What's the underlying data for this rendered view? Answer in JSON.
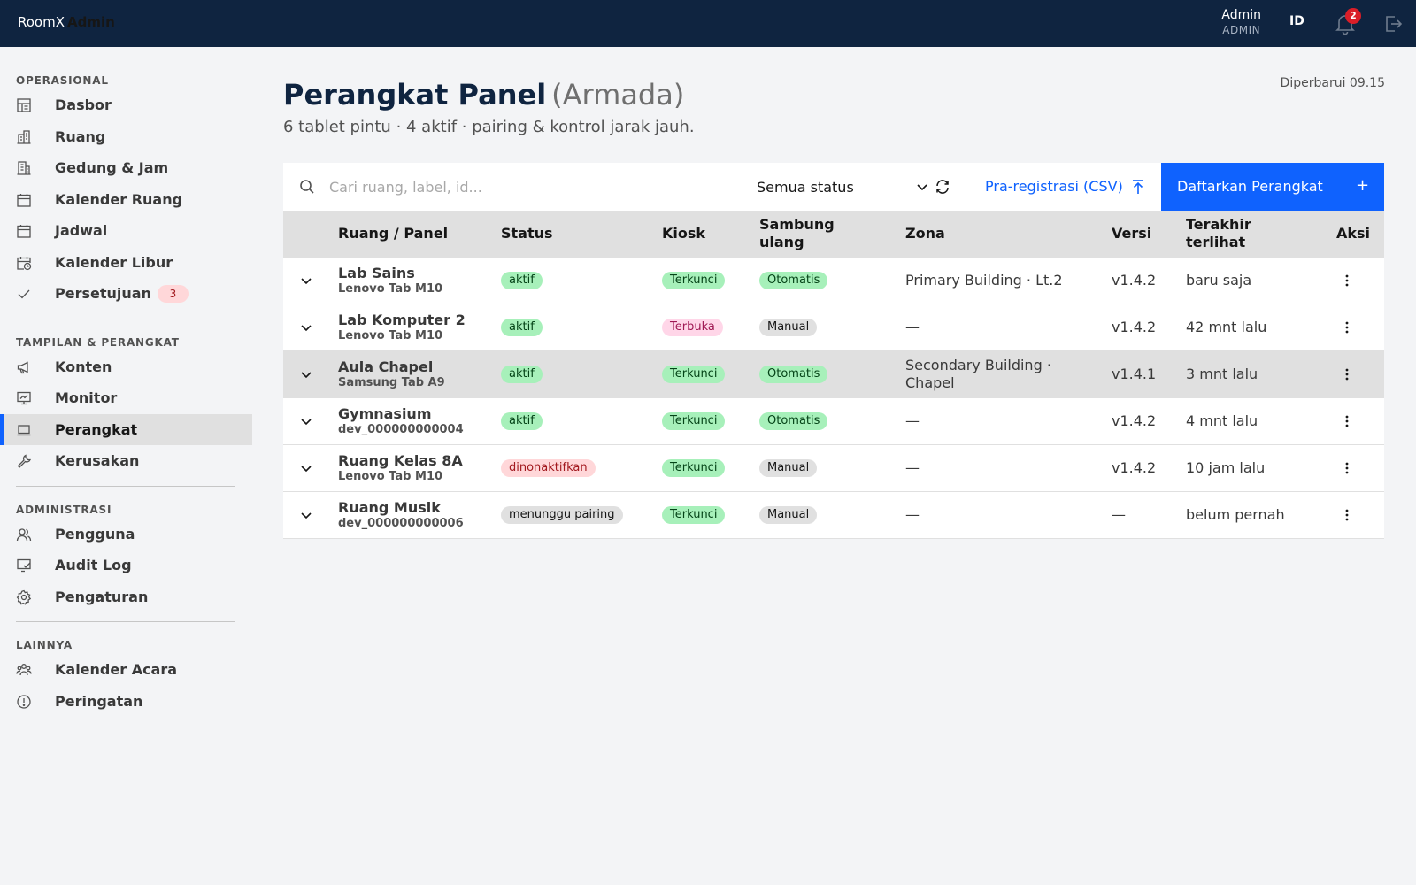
{
  "header": {
    "brand_name": "RoomX",
    "brand_sub": "Admin",
    "user_name": "Admin",
    "user_role": "ADMIN",
    "language": "ID",
    "notification_count": "2",
    "icons": [
      "bell-icon",
      "logout-icon"
    ]
  },
  "sidebar": {
    "sections": [
      {
        "title": "OPERASIONAL",
        "items": [
          {
            "label": "Dasbor",
            "icon": "dashboard-icon"
          },
          {
            "label": "Ruang",
            "icon": "building-icon"
          },
          {
            "label": "Gedung & Jam",
            "icon": "office-building-icon"
          },
          {
            "label": "Kalender Ruang",
            "icon": "calendar-icon"
          },
          {
            "label": "Jadwal",
            "icon": "calendar-icon"
          },
          {
            "label": "Kalender Libur",
            "icon": "calendar-clock-icon"
          },
          {
            "label": "Persetujuan",
            "icon": "checkmark-icon",
            "count": "3"
          }
        ]
      },
      {
        "title": "TAMPILAN & PERANGKAT",
        "items": [
          {
            "label": "Konten",
            "icon": "megaphone-icon"
          },
          {
            "label": "Monitor",
            "icon": "monitor-icon"
          },
          {
            "label": "Perangkat",
            "icon": "laptop-icon",
            "active": true
          },
          {
            "label": "Kerusakan",
            "icon": "wrench-icon"
          }
        ]
      },
      {
        "title": "ADMINISTRASI",
        "items": [
          {
            "label": "Pengguna",
            "icon": "users-icon"
          },
          {
            "label": "Audit Log",
            "icon": "audit-icon"
          },
          {
            "label": "Pengaturan",
            "icon": "gear-icon"
          }
        ]
      },
      {
        "title": "LAINNYA",
        "items": [
          {
            "label": "Kalender Acara",
            "icon": "group-icon"
          },
          {
            "label": "Peringatan",
            "icon": "warning-icon"
          }
        ]
      }
    ]
  },
  "page": {
    "title": "Perangkat Panel",
    "title_paren": "(Armada)",
    "subtitle": "6 tablet pintu · 4 aktif · pairing & kontrol jarak jauh.",
    "updated": "Diperbarui 09.15"
  },
  "toolbar": {
    "search_placeholder": "Cari ruang, label, id...",
    "status_filter": "Semua status",
    "csv_label": "Pra-registrasi (CSV)",
    "register_label": "Daftarkan Perangkat",
    "register_icon": "+"
  },
  "table": {
    "columns": [
      "Ruang / Panel",
      "Status",
      "Kiosk",
      "Sambung\nulang",
      "Zona",
      "Versi",
      "Terakhir\nterlihat",
      "Aksi"
    ],
    "rows": [
      {
        "name": "Lab Sains",
        "device": "Lenovo Tab M10",
        "status": "aktif",
        "status_tone": "green",
        "kiosk": "Terkunci",
        "kiosk_tone": "green",
        "reconnect": "Otomatis",
        "reconnect_tone": "green",
        "zone": "Primary Building · Lt.2",
        "version": "v1.4.2",
        "last_seen": "baru saja"
      },
      {
        "name": "Lab Komputer 2",
        "device": "Lenovo Tab M10",
        "status": "aktif",
        "status_tone": "green",
        "kiosk": "Terbuka",
        "kiosk_tone": "pink",
        "reconnect": "Manual",
        "reconnect_tone": "gray",
        "zone": "—",
        "version": "v1.4.2",
        "last_seen": "42 mnt lalu"
      },
      {
        "name": "Aula Chapel",
        "device": "Samsung Tab A9",
        "status": "aktif",
        "status_tone": "green",
        "kiosk": "Terkunci",
        "kiosk_tone": "green",
        "reconnect": "Otomatis",
        "reconnect_tone": "green",
        "zone": "Secondary Building · Chapel",
        "version": "v1.4.1",
        "last_seen": "3 mnt lalu",
        "highlight": true
      },
      {
        "name": "Gymnasium",
        "device": "dev_000000000004",
        "status": "aktif",
        "status_tone": "green",
        "kiosk": "Terkunci",
        "kiosk_tone": "green",
        "reconnect": "Otomatis",
        "reconnect_tone": "green",
        "zone": "—",
        "version": "v1.4.2",
        "last_seen": "4 mnt lalu"
      },
      {
        "name": "Ruang Kelas 8A",
        "device": "Lenovo Tab M10",
        "status": "dinonaktifkan",
        "status_tone": "red",
        "kiosk": "Terkunci",
        "kiosk_tone": "green",
        "reconnect": "Manual",
        "reconnect_tone": "gray",
        "zone": "—",
        "version": "v1.4.2",
        "last_seen": "10 jam lalu"
      },
      {
        "name": "Ruang Musik",
        "device": "dev_000000000006",
        "status": "menunggu pairing",
        "status_tone": "gray",
        "kiosk": "Terkunci",
        "kiosk_tone": "green",
        "reconnect": "Manual",
        "reconnect_tone": "gray",
        "zone": "—",
        "version": "—",
        "last_seen": "belum pernah"
      }
    ]
  },
  "colors": {
    "topbar": "#0f2440",
    "accent": "#0f62fe",
    "alert": "#da1e28"
  }
}
